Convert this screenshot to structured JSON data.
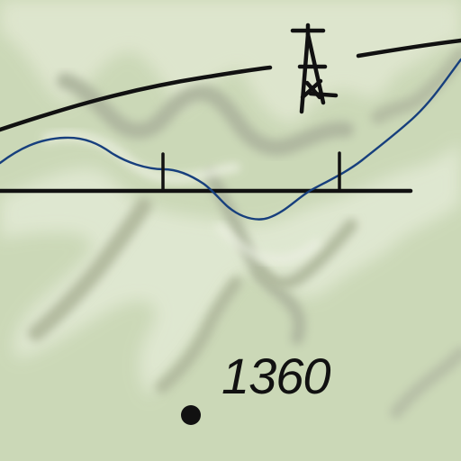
{
  "map": {
    "spot_height": {
      "label": "1360"
    },
    "features": {
      "terrain": "shaded-relief",
      "stream": "blue-stream-line",
      "road": "black-road-line",
      "power_line": "black-power-line",
      "tower_icon": "transmission-tower-icon",
      "bridge_icon": "bridge-icon"
    },
    "colors": {
      "land": "#cbd8b7",
      "relief_highlight": "#e2ead2",
      "relief_shadow": "#b1b9a1",
      "water": "#173f7d",
      "linework": "#111111"
    }
  }
}
